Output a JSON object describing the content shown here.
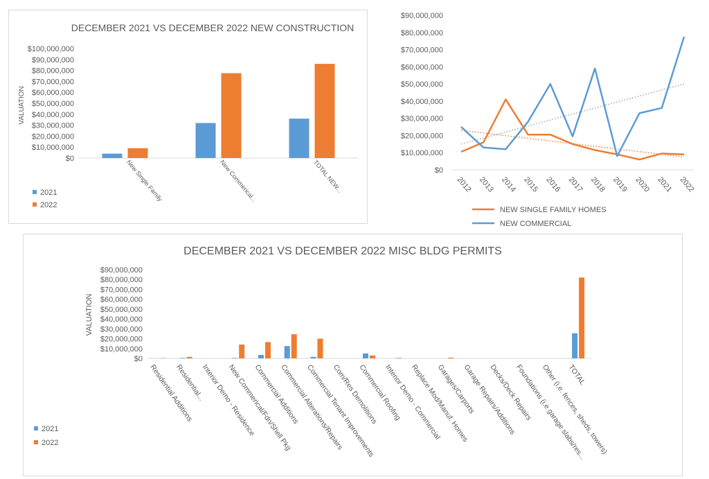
{
  "colors": {
    "c2021": "#5B9BD5",
    "c2022": "#ED7D31",
    "axis": "#D9D9D9",
    "text": "#595959",
    "trend_sf": "#ED7D31",
    "trend_com": "#A5A5A5"
  },
  "chart_data": [
    {
      "type": "bar",
      "title": "DECEMBER 2021 VS DECEMBER 2022 NEW CONSTRUCTION",
      "ylabel": "VALUATION",
      "xlabel": "",
      "ylim": [
        0,
        100000000
      ],
      "yticks": [
        "$0",
        "$10,000,000",
        "$20,000,000",
        "$30,000,000",
        "$40,000,000",
        "$50,000,000",
        "$60,000,000",
        "$70,000,000",
        "$80,000,000",
        "$90,000,000",
        "$100,000,000"
      ],
      "categories": [
        "New Single Family",
        "New Commerical...",
        "TOTAL NEW..."
      ],
      "series": [
        {
          "name": "2021",
          "values": [
            4000000,
            32000000,
            36000000
          ]
        },
        {
          "name": "2022",
          "values": [
            9000000,
            77500000,
            86000000
          ]
        }
      ],
      "legend": "bottom-left"
    },
    {
      "type": "line",
      "title": "",
      "ylim": [
        0,
        90000000
      ],
      "yticks": [
        "$0",
        "$10,000,000",
        "$20,000,000",
        "$30,000,000",
        "$40,000,000",
        "$50,000,000",
        "$60,000,000",
        "$70,000,000",
        "$80,000,000",
        "$90,000,000"
      ],
      "x": [
        "2012",
        "2013",
        "2014",
        "2015",
        "2016",
        "2017",
        "2018",
        "2019",
        "2020",
        "2021",
        "2022"
      ],
      "series": [
        {
          "name": "NEW SINGLE FAMILY HOMES",
          "values": [
            10500000,
            16000000,
            41000000,
            20500000,
            20500000,
            15000000,
            11500000,
            9000000,
            6000000,
            9500000,
            9000000
          ],
          "trendline": [
            23000000,
            7500000
          ]
        },
        {
          "name": "NEW COMMERCIAL",
          "values": [
            25000000,
            13000000,
            12000000,
            28000000,
            50000000,
            19500000,
            59000000,
            8000000,
            33000000,
            36000000,
            77500000
          ],
          "trendline": [
            15000000,
            50000000
          ]
        }
      ],
      "legend": "bottom"
    },
    {
      "type": "bar",
      "title": "DECEMBER 2021 VS DECEMBER 2022 MISC BLDG PERMITS",
      "ylabel": "VALUATION",
      "xlabel": "",
      "ylim": [
        0,
        90000000
      ],
      "yticks": [
        "$0",
        "$10,000,000",
        "$20,000,000",
        "$30,000,000",
        "$40,000,000",
        "$50,000,000",
        "$60,000,000",
        "$70,000,000",
        "$80,000,000",
        "$90,000,000"
      ],
      "categories": [
        "Residential Additions",
        "Residential...",
        "Interior Demo - Residence",
        "New Commerical/Fdn/Shell Pkg",
        "Commercial Additions",
        "Commercial Alterations/Repairs",
        "Commercial Tenant Improvements",
        "Com/Res Demolitions",
        "Commercial Roofing",
        "Interior Demo - Commercial",
        "Replace Mod/Manuf. Homes",
        "Garages/Carports",
        "Garage Repairs/Additions",
        "Decks/Deck Repairs",
        "Foundations (i.e garage slabs/res...",
        "Other (i.e. fences, sheds, towers)",
        "TOTAL"
      ],
      "series": [
        {
          "name": "2021",
          "values": [
            100000,
            500000,
            0,
            500000,
            3500000,
            12500000,
            1500000,
            0,
            5000000,
            0,
            0,
            0,
            0,
            0,
            0,
            0,
            25500000
          ]
        },
        {
          "name": "2022",
          "values": [
            300000,
            1500000,
            0,
            14000000,
            16500000,
            24500000,
            20000000,
            0,
            3000000,
            500000,
            0,
            800000,
            0,
            0,
            0,
            0,
            82000000
          ]
        }
      ],
      "legend": "bottom-left"
    }
  ]
}
